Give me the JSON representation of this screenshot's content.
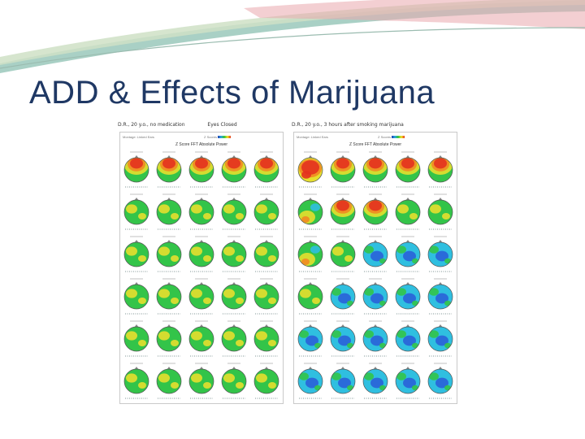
{
  "slide": {
    "title": "ADD & Effects of Marijuana",
    "accent_colors": [
      "#7fb3a6",
      "#c7d8b8",
      "#e9a3a8"
    ],
    "title_color": "#1f3864"
  },
  "figure": {
    "panels": [
      {
        "header": [
          "D.R., 20 y.o., no medication",
          "Eyes Closed"
        ],
        "subheader": [
          "Montage: Linked Ears",
          "Z Scores",
          "-3.0",
          "+3.0"
        ],
        "sheet_title": "Z Score FFT Absolute Power",
        "description_colors": "mostly green maps with red/yellow frontal activity in the top row",
        "rows": [
          [
            "warm",
            "warm",
            "warm",
            "warm",
            "warm"
          ],
          [
            "green",
            "green",
            "green",
            "green",
            "green"
          ],
          [
            "green",
            "green",
            "green",
            "green",
            "green"
          ],
          [
            "green",
            "green",
            "green",
            "green",
            "green"
          ],
          [
            "green",
            "green",
            "green",
            "green",
            "green"
          ],
          [
            "green",
            "green",
            "green",
            "green",
            "green"
          ]
        ]
      },
      {
        "header": [
          "D.R., 20 y.o., 3 hours after smoking marijuana"
        ],
        "subheader": [
          "Montage: Linked Ears",
          "Z Scores",
          "-3.0",
          "+3.0"
        ],
        "sheet_title": "Z Score FFT Absolute Power",
        "rows": [
          [
            "hot",
            "warm",
            "warm",
            "warm",
            "warm"
          ],
          [
            "mixed",
            "warm",
            "warm",
            "green",
            "green"
          ],
          [
            "mixed",
            "green",
            "cool",
            "cool",
            "cool"
          ],
          [
            "green",
            "cool",
            "cool",
            "cool",
            "cool"
          ],
          [
            "cool",
            "cool",
            "cool",
            "cool",
            "cool"
          ],
          [
            "cool",
            "cool",
            "cool",
            "cool",
            "cool"
          ]
        ]
      }
    ],
    "palette": {
      "green": "#33c449",
      "yellow": "#e6df2e",
      "red": "#e3321f",
      "orange": "#f18a22",
      "cyan": "#2fbfe0",
      "blue": "#2a62d8"
    }
  }
}
